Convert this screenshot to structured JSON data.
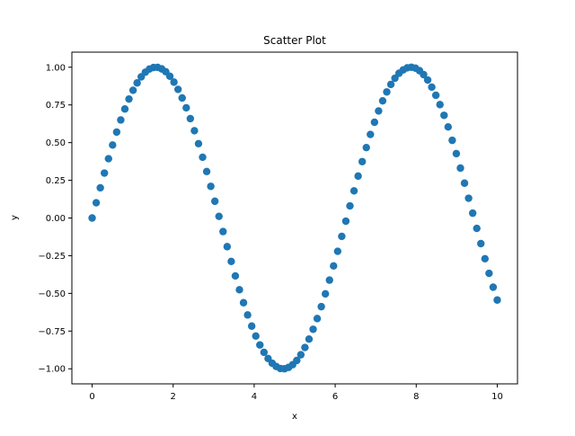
{
  "chart_data": {
    "type": "scatter",
    "title": "Scatter Plot",
    "xlabel": "x",
    "ylabel": "y",
    "xlim": [
      -0.5,
      10.5
    ],
    "ylim": [
      -1.1,
      1.1
    ],
    "xticks": [
      0,
      2,
      4,
      6,
      8,
      10
    ],
    "xtick_labels": [
      "0",
      "2",
      "4",
      "6",
      "8",
      "10"
    ],
    "yticks": [
      -1.0,
      -0.75,
      -0.5,
      -0.25,
      0.0,
      0.25,
      0.5,
      0.75,
      1.0
    ],
    "ytick_labels": [
      "−1.00",
      "−0.75",
      "−0.50",
      "−0.25",
      "0.00",
      "0.25",
      "0.50",
      "0.75",
      "1.00"
    ],
    "grid": false,
    "legend": "none",
    "marker_color": "#1f77b4",
    "series": [
      {
        "x": [
          0.0,
          0.101,
          0.202,
          0.303,
          0.404,
          0.505,
          0.606,
          0.707,
          0.808,
          0.909,
          1.01,
          1.111,
          1.212,
          1.313,
          1.414,
          1.515,
          1.616,
          1.717,
          1.818,
          1.919,
          2.02,
          2.121,
          2.222,
          2.323,
          2.424,
          2.525,
          2.626,
          2.727,
          2.828,
          2.929,
          3.03,
          3.131,
          3.232,
          3.333,
          3.434,
          3.535,
          3.636,
          3.737,
          3.838,
          3.939,
          4.04,
          4.141,
          4.242,
          4.343,
          4.444,
          4.545,
          4.646,
          4.747,
          4.848,
          4.949,
          5.051,
          5.152,
          5.253,
          5.354,
          5.455,
          5.556,
          5.657,
          5.758,
          5.859,
          5.96,
          6.061,
          6.162,
          6.263,
          6.364,
          6.465,
          6.566,
          6.667,
          6.768,
          6.869,
          6.97,
          7.071,
          7.172,
          7.273,
          7.374,
          7.475,
          7.576,
          7.677,
          7.778,
          7.879,
          7.98,
          8.081,
          8.182,
          8.283,
          8.384,
          8.485,
          8.586,
          8.687,
          8.788,
          8.889,
          8.99,
          9.091,
          9.192,
          9.293,
          9.394,
          9.495,
          9.596,
          9.697,
          9.798,
          9.899,
          10.0
        ],
        "y": [
          0.0,
          0.101,
          0.2,
          0.298,
          0.393,
          0.484,
          0.57,
          0.65,
          0.723,
          0.789,
          0.847,
          0.896,
          0.936,
          0.967,
          0.988,
          0.998,
          0.999,
          0.989,
          0.97,
          0.94,
          0.901,
          0.853,
          0.796,
          0.731,
          0.659,
          0.579,
          0.493,
          0.403,
          0.308,
          0.21,
          0.111,
          0.011,
          -0.09,
          -0.19,
          -0.288,
          -0.384,
          -0.476,
          -0.562,
          -0.643,
          -0.717,
          -0.783,
          -0.842,
          -0.891,
          -0.932,
          -0.963,
          -0.985,
          -0.998,
          -1.0,
          -0.991,
          -0.973,
          -0.945,
          -0.907,
          -0.859,
          -0.803,
          -0.738,
          -0.667,
          -0.588,
          -0.503,
          -0.412,
          -0.318,
          -0.221,
          -0.122,
          -0.021,
          0.08,
          0.18,
          0.278,
          0.374,
          0.467,
          0.554,
          0.635,
          0.71,
          0.777,
          0.836,
          0.886,
          0.927,
          0.96,
          0.982,
          0.996,
          1.0,
          0.994,
          0.977,
          0.951,
          0.915,
          0.868,
          0.814,
          0.752,
          0.681,
          0.604,
          0.515,
          0.427,
          0.331,
          0.231,
          0.131,
          0.032,
          -0.069,
          -0.17,
          -0.27,
          -0.367,
          -0.459,
          -0.544
        ]
      }
    ]
  }
}
